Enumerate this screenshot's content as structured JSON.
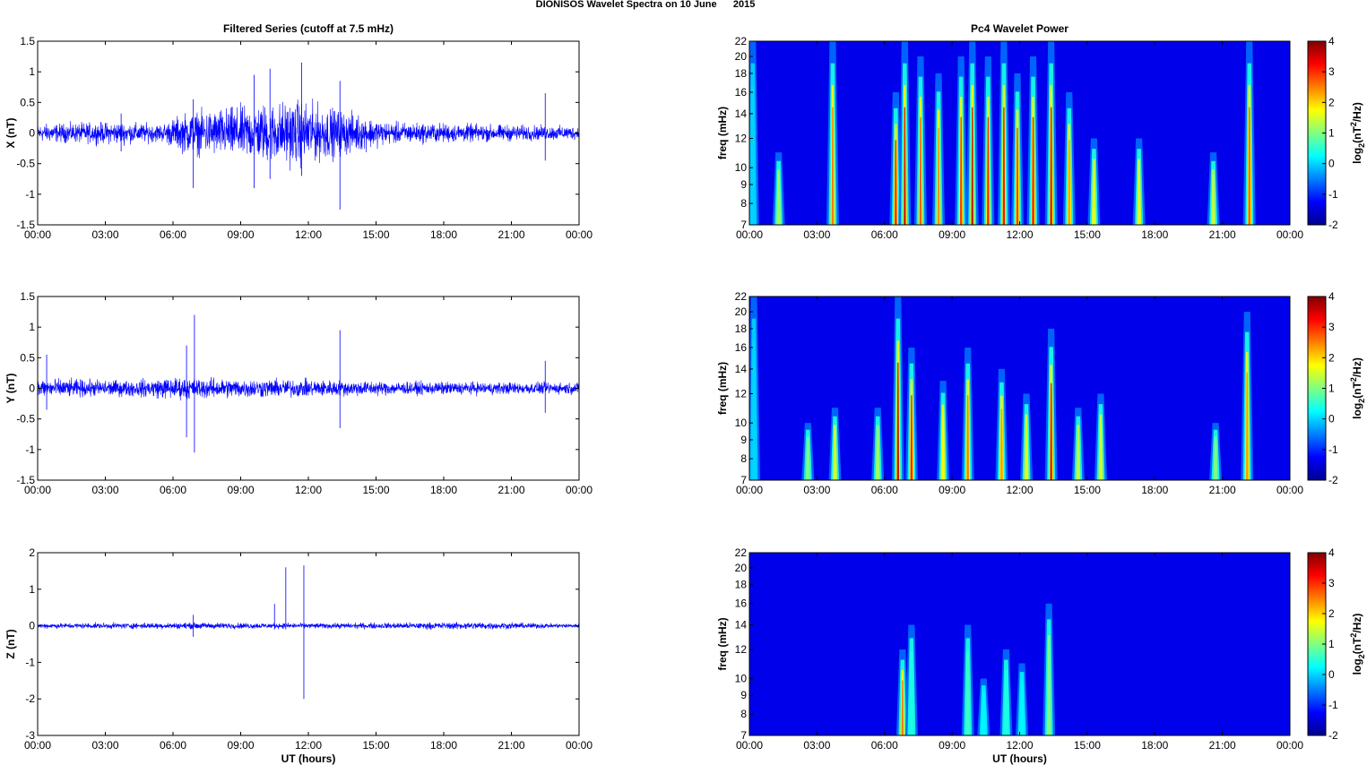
{
  "figure_title": "DIONISOS Wavelet Spectra on 10 June      2015",
  "chart_data": [
    {
      "type": "line",
      "panel": "time-series-x",
      "title": "Filtered Series (cutoff at 7.5 mHz)",
      "ylabel": "X (nT)",
      "xlabel": "",
      "xlim": [
        0,
        24
      ],
      "ylim": [
        -1.5,
        1.5
      ],
      "yticks": [
        -1.5,
        -1,
        -0.5,
        0,
        0.5,
        1,
        1.5
      ],
      "ytick_labels": [
        "-1.5",
        "-1",
        "-0.5",
        "0",
        "0.5",
        "1",
        "1.5"
      ],
      "xticks": [
        0,
        3,
        6,
        9,
        12,
        15,
        18,
        21,
        24
      ],
      "xtick_labels": [
        "00:00",
        "03:00",
        "06:00",
        "09:00",
        "12:00",
        "15:00",
        "18:00",
        "21:00",
        "00:00"
      ],
      "line_color": "#0000ff",
      "envelope": [
        {
          "t": 0,
          "amp": 0.2
        },
        {
          "t": 3.6,
          "amp": 0.25
        },
        {
          "t": 5.5,
          "amp": 0.2
        },
        {
          "t": 6.5,
          "amp": 0.45
        },
        {
          "t": 9.0,
          "amp": 0.6
        },
        {
          "t": 11.5,
          "amp": 0.75
        },
        {
          "t": 14.0,
          "amp": 0.45
        },
        {
          "t": 15.5,
          "amp": 0.25
        },
        {
          "t": 19.5,
          "amp": 0.2
        },
        {
          "t": 24,
          "amp": 0.15
        }
      ],
      "spikes": [
        {
          "t": 3.7,
          "min": -0.3,
          "max": 0.32
        },
        {
          "t": 6.9,
          "min": -0.9,
          "max": 0.55
        },
        {
          "t": 9.6,
          "min": -0.9,
          "max": 0.95
        },
        {
          "t": 10.3,
          "min": -0.75,
          "max": 1.05
        },
        {
          "t": 11.7,
          "min": -0.7,
          "max": 1.15
        },
        {
          "t": 13.4,
          "min": -1.25,
          "max": 0.85
        },
        {
          "t": 22.5,
          "min": -0.45,
          "max": 0.65
        }
      ]
    },
    {
      "type": "heatmap",
      "panel": "wavelet-x",
      "title": "Pc4 Wavelet Power",
      "ylabel": "freq (mHz)",
      "xlabel": "",
      "xlim": [
        0,
        24
      ],
      "ylim": [
        7,
        22
      ],
      "yscale": "log",
      "yticks": [
        7,
        8,
        9,
        10,
        12,
        14,
        16,
        18,
        20,
        22
      ],
      "xticks": [
        0,
        3,
        6,
        9,
        12,
        15,
        18,
        21,
        24
      ],
      "xtick_labels": [
        "00:00",
        "03:00",
        "06:00",
        "09:00",
        "12:00",
        "15:00",
        "18:00",
        "21:00",
        "00:00"
      ],
      "colorbar": {
        "range": [
          -2,
          4
        ],
        "ticks": [
          -2,
          -1,
          0,
          1,
          2,
          3,
          4
        ],
        "colormap": "jet"
      },
      "streaks": [
        {
          "t": 0.15,
          "p": 0.0,
          "top": 22
        },
        {
          "t": 1.3,
          "p": 1.2,
          "top": 11
        },
        {
          "t": 3.7,
          "p": 2.6,
          "top": 22
        },
        {
          "t": 6.5,
          "p": 3.2,
          "top": 16
        },
        {
          "t": 6.9,
          "p": 3.5,
          "top": 22
        },
        {
          "t": 7.6,
          "p": 2.8,
          "top": 20
        },
        {
          "t": 8.4,
          "p": 2.5,
          "top": 18
        },
        {
          "t": 9.4,
          "p": 3.0,
          "top": 20
        },
        {
          "t": 9.9,
          "p": 3.6,
          "top": 22
        },
        {
          "t": 10.6,
          "p": 3.2,
          "top": 20
        },
        {
          "t": 11.3,
          "p": 3.4,
          "top": 22
        },
        {
          "t": 11.9,
          "p": 3.0,
          "top": 18
        },
        {
          "t": 12.6,
          "p": 3.3,
          "top": 20
        },
        {
          "t": 13.4,
          "p": 3.5,
          "top": 22
        },
        {
          "t": 14.2,
          "p": 2.4,
          "top": 16
        },
        {
          "t": 15.3,
          "p": 1.6,
          "top": 12
        },
        {
          "t": 17.3,
          "p": 1.6,
          "top": 12
        },
        {
          "t": 20.6,
          "p": 1.4,
          "top": 11
        },
        {
          "t": 22.2,
          "p": 2.8,
          "top": 22
        }
      ]
    },
    {
      "type": "line",
      "panel": "time-series-y",
      "ylabel": "Y (nT)",
      "xlabel": "",
      "xlim": [
        0,
        24
      ],
      "ylim": [
        -1.5,
        1.5
      ],
      "yticks": [
        -1.5,
        -1,
        -0.5,
        0,
        0.5,
        1,
        1.5
      ],
      "ytick_labels": [
        "-1.5",
        "-1",
        "-0.5",
        "0",
        "0.5",
        "1",
        "1.5"
      ],
      "xticks": [
        0,
        3,
        6,
        9,
        12,
        15,
        18,
        21,
        24
      ],
      "xtick_labels": [
        "00:00",
        "03:00",
        "06:00",
        "09:00",
        "12:00",
        "15:00",
        "18:00",
        "21:00",
        "00:00"
      ],
      "line_color": "#0000ff",
      "envelope": [
        {
          "t": 0,
          "amp": 0.22
        },
        {
          "t": 4,
          "amp": 0.18
        },
        {
          "t": 6.0,
          "amp": 0.25
        },
        {
          "t": 8.5,
          "amp": 0.22
        },
        {
          "t": 12,
          "amp": 0.2
        },
        {
          "t": 16,
          "amp": 0.15
        },
        {
          "t": 24,
          "amp": 0.13
        }
      ],
      "spikes": [
        {
          "t": 0.4,
          "min": -0.35,
          "max": 0.55
        },
        {
          "t": 6.6,
          "min": -0.8,
          "max": 0.7
        },
        {
          "t": 6.95,
          "min": -1.05,
          "max": 1.2
        },
        {
          "t": 13.4,
          "min": -0.65,
          "max": 0.95
        },
        {
          "t": 22.5,
          "min": -0.4,
          "max": 0.45
        }
      ]
    },
    {
      "type": "heatmap",
      "panel": "wavelet-y",
      "ylabel": "freq (mHz)",
      "xlabel": "",
      "xlim": [
        0,
        24
      ],
      "ylim": [
        7,
        22
      ],
      "yscale": "log",
      "yticks": [
        7,
        8,
        9,
        10,
        12,
        14,
        16,
        18,
        20,
        22
      ],
      "xticks": [
        0,
        3,
        6,
        9,
        12,
        15,
        18,
        21,
        24
      ],
      "xtick_labels": [
        "00:00",
        "03:00",
        "06:00",
        "09:00",
        "12:00",
        "15:00",
        "18:00",
        "21:00",
        "00:00"
      ],
      "colorbar": {
        "range": [
          -2,
          4
        ],
        "ticks": [
          -2,
          -1,
          0,
          1,
          2,
          3,
          4
        ],
        "colormap": "jet"
      },
      "streaks": [
        {
          "t": 0.2,
          "p": 0.0,
          "top": 22
        },
        {
          "t": 2.6,
          "p": 1.0,
          "top": 10
        },
        {
          "t": 3.8,
          "p": 1.5,
          "top": 11
        },
        {
          "t": 5.7,
          "p": 1.2,
          "top": 11
        },
        {
          "t": 6.6,
          "p": 3.6,
          "top": 22
        },
        {
          "t": 7.2,
          "p": 3.2,
          "top": 16
        },
        {
          "t": 8.6,
          "p": 1.8,
          "top": 13
        },
        {
          "t": 9.7,
          "p": 2.6,
          "top": 16
        },
        {
          "t": 11.2,
          "p": 2.4,
          "top": 14
        },
        {
          "t": 12.3,
          "p": 1.6,
          "top": 12
        },
        {
          "t": 13.4,
          "p": 3.5,
          "top": 18
        },
        {
          "t": 14.6,
          "p": 1.4,
          "top": 11
        },
        {
          "t": 15.6,
          "p": 1.5,
          "top": 12
        },
        {
          "t": 20.7,
          "p": 1.0,
          "top": 10
        },
        {
          "t": 22.1,
          "p": 2.4,
          "top": 20
        }
      ]
    },
    {
      "type": "line",
      "panel": "time-series-z",
      "ylabel": "Z (nT)",
      "xlabel": "UT (hours)",
      "xlim": [
        0,
        24
      ],
      "ylim": [
        -3,
        2
      ],
      "yticks": [
        -3,
        -2,
        -1,
        0,
        1,
        2
      ],
      "ytick_labels": [
        "-3",
        "-2",
        "-1",
        "0",
        "1",
        "2"
      ],
      "xticks": [
        0,
        3,
        6,
        9,
        12,
        15,
        18,
        21,
        24
      ],
      "xtick_labels": [
        "00:00",
        "03:00",
        "06:00",
        "09:00",
        "12:00",
        "15:00",
        "18:00",
        "21:00",
        "00:00"
      ],
      "line_color": "#0000ff",
      "envelope": [
        {
          "t": 0,
          "amp": 0.1
        },
        {
          "t": 7,
          "amp": 0.12
        },
        {
          "t": 12,
          "amp": 0.1
        },
        {
          "t": 19.5,
          "amp": 0.14
        },
        {
          "t": 24,
          "amp": 0.08
        }
      ],
      "spikes": [
        {
          "t": 6.9,
          "min": -0.3,
          "max": 0.3
        },
        {
          "t": 10.5,
          "min": -0.1,
          "max": 0.6
        },
        {
          "t": 11.0,
          "min": -0.1,
          "max": 1.6
        },
        {
          "t": 11.8,
          "min": -2.0,
          "max": 1.65
        }
      ]
    },
    {
      "type": "heatmap",
      "panel": "wavelet-z",
      "ylabel": "freq (mHz)",
      "xlabel": "UT (hours)",
      "xlim": [
        0,
        24
      ],
      "ylim": [
        7,
        22
      ],
      "yscale": "log",
      "yticks": [
        7,
        8,
        9,
        10,
        12,
        14,
        16,
        18,
        20,
        22
      ],
      "xticks": [
        0,
        3,
        6,
        9,
        12,
        15,
        18,
        21,
        24
      ],
      "xtick_labels": [
        "00:00",
        "03:00",
        "06:00",
        "09:00",
        "12:00",
        "15:00",
        "18:00",
        "21:00",
        "00:00"
      ],
      "colorbar": {
        "range": [
          -2,
          4
        ],
        "ticks": [
          -2,
          -1,
          0,
          1,
          2,
          3,
          4
        ],
        "colormap": "jet"
      },
      "streaks": [
        {
          "t": 6.8,
          "p": 2.6,
          "top": 12
        },
        {
          "t": 7.2,
          "p": 0.4,
          "top": 14
        },
        {
          "t": 9.7,
          "p": 0.6,
          "top": 14
        },
        {
          "t": 10.4,
          "p": 0.2,
          "top": 10
        },
        {
          "t": 11.4,
          "p": 0.4,
          "top": 12
        },
        {
          "t": 12.1,
          "p": 0.2,
          "top": 11
        },
        {
          "t": 13.3,
          "p": 1.0,
          "top": 16
        }
      ]
    }
  ]
}
